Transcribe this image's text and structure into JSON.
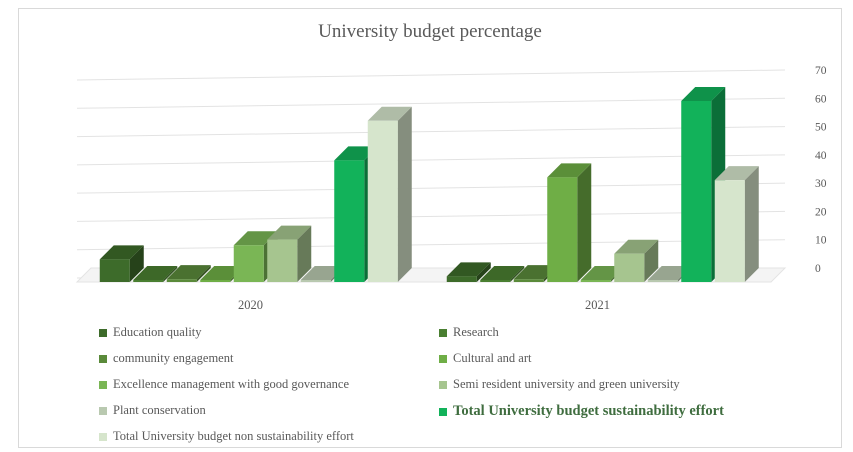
{
  "chart_data": {
    "type": "bar",
    "title": "University budget percentage",
    "categories": [
      "2020",
      "2021"
    ],
    "ylim": [
      0,
      70
    ],
    "y_ticks": [
      0,
      10,
      20,
      30,
      40,
      50,
      60,
      70
    ],
    "grid": true,
    "legend_position": "bottom",
    "series": [
      {
        "name": "Education quality",
        "values": [
          8,
          2
        ],
        "color": "#3d6b2a"
      },
      {
        "name": "Research",
        "values": [
          0,
          0
        ],
        "color": "#4a7f31"
      },
      {
        "name": "community engagement",
        "values": [
          1,
          1
        ],
        "color": "#5a8a3a"
      },
      {
        "name": "Cultural and art",
        "values": [
          0,
          37
        ],
        "color": "#6fae46"
      },
      {
        "name": "Excellence management with good governance",
        "values": [
          13,
          0
        ],
        "color": "#7ab655"
      },
      {
        "name": "Semi resident university and green university",
        "values": [
          15,
          10
        ],
        "color": "#a6c58f"
      },
      {
        "name": "Plant conservation",
        "values": [
          0,
          0
        ],
        "color": "#b9c9b0"
      },
      {
        "name": "Total University budget sustainability effort",
        "values": [
          43,
          64
        ],
        "color": "#12b25a"
      },
      {
        "name": "Total University budget non sustainability effort",
        "values": [
          57,
          36
        ],
        "color": "#d6e5cc"
      }
    ]
  }
}
